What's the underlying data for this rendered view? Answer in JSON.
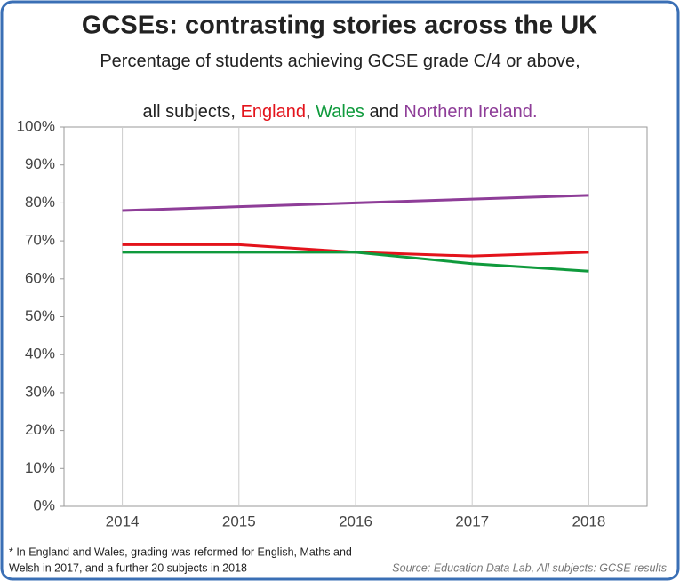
{
  "chart_data": {
    "type": "line",
    "title": "GCSEs: contrasting stories across the UK",
    "subtitle": "Percentage of students achieving GCSE grade C/4 or above,",
    "subtitle_parts": [
      "all subjects, ",
      ", ",
      " and ",
      "."
    ],
    "categories": [
      "2014",
      "2015",
      "2016",
      "2017",
      "2018"
    ],
    "series": [
      {
        "name": "England",
        "color": "#e3131b",
        "values": [
          69,
          69,
          67,
          66,
          67
        ]
      },
      {
        "name": "Wales",
        "color": "#0f9a3c",
        "values": [
          67,
          67,
          67,
          64,
          62
        ]
      },
      {
        "name": "Northern Ireland",
        "color": "#8e3d98",
        "values": [
          78,
          79,
          80,
          81,
          82
        ]
      }
    ],
    "ylim": [
      0,
      100
    ],
    "yticks": [
      {
        "value": 0,
        "label": "0%"
      },
      {
        "value": 10,
        "label": "10%"
      },
      {
        "value": 20,
        "label": "20%"
      },
      {
        "value": 30,
        "label": "30%"
      },
      {
        "value": 40,
        "label": "40%"
      },
      {
        "value": 50,
        "label": "50%"
      },
      {
        "value": 60,
        "label": "60%"
      },
      {
        "value": 70,
        "label": "70%"
      },
      {
        "value": 80,
        "label": "80%"
      },
      {
        "value": 90,
        "label": "90%"
      },
      {
        "value": 100,
        "label": "100%"
      }
    ],
    "footnote": [
      "* In England and Wales, grading was reformed for English, Maths and",
      "Welsh in 2017, and a further 20 subjects in 2018"
    ],
    "source": "Source: Education Data Lab, All subjects: GCSE results"
  }
}
